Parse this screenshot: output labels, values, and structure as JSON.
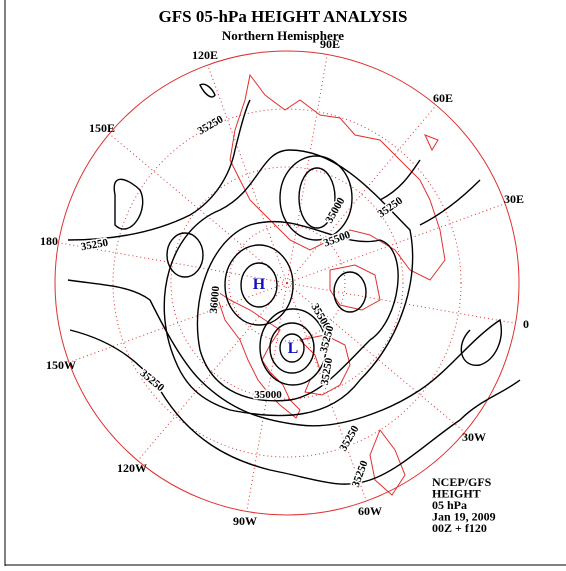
{
  "header": {
    "title": "GFS 05-hPa HEIGHT ANALYSIS",
    "subtitle": "Northern Hemisphere"
  },
  "longitude_labels": [
    "90E",
    "60E",
    "30E",
    "0",
    "30W",
    "60W",
    "90W",
    "120W",
    "150W",
    "180",
    "150E",
    "120E"
  ],
  "contour_labels": [
    "35250",
    "35250",
    "35000",
    "35250",
    "35500",
    "36000",
    "35500",
    "35250",
    "35250",
    "35000",
    "35250",
    "35250",
    "35250"
  ],
  "centers": [
    "H",
    "L"
  ],
  "info": [
    "NCEP/GFS",
    "HEIGHT",
    "05 hPa",
    "Jan 19, 2009",
    "00Z + f120"
  ]
}
